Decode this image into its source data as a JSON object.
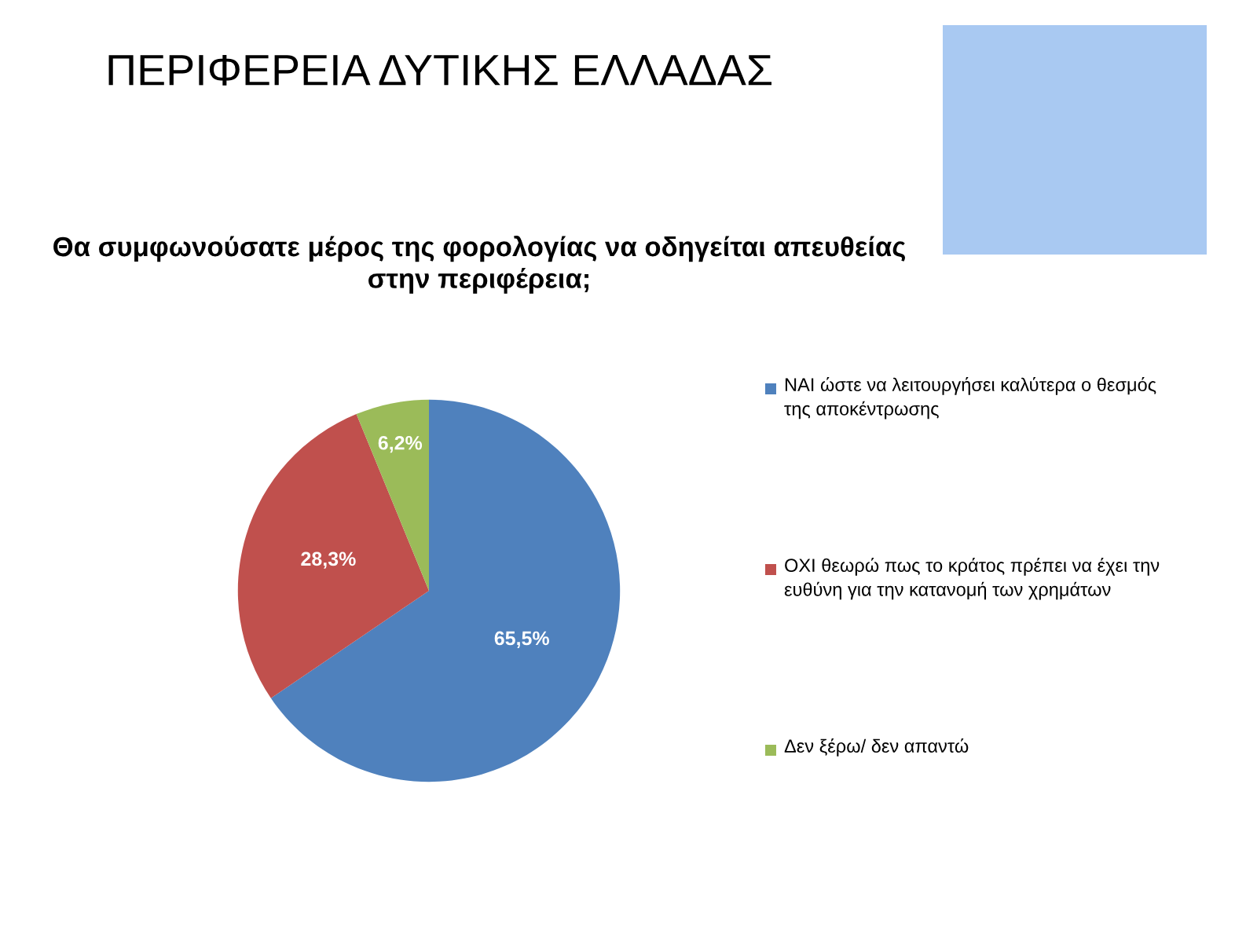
{
  "chart_data": {
    "type": "pie",
    "title": "ΠΕΡΙΦΕΡΕΙΑ ΔΥΤΙΚΗΣ ΕΛΛΑΔΑΣ",
    "subtitle": "Θα συμφωνούσατε μέρος της φορολογίας να οδηγείται απευθείας στην περιφέρεια;",
    "categories": [
      "ΝΑΙ ώστε να λειτουργήσει καλύτερα ο θεσμός της αποκέντρωσης",
      "ΟΧΙ θεωρώ πως το κράτος πρέπει να έχει την ευθύνη για την κατανομή των χρημάτων",
      "Δεν ξέρω/ δεν απαντώ"
    ],
    "values": [
      65.5,
      28.3,
      6.2
    ],
    "colors": [
      "#4f81bd",
      "#c0504d",
      "#9bbb59"
    ],
    "value_labels": [
      "65,5%",
      "28,3%",
      "6,2%"
    ],
    "legend": "right"
  }
}
